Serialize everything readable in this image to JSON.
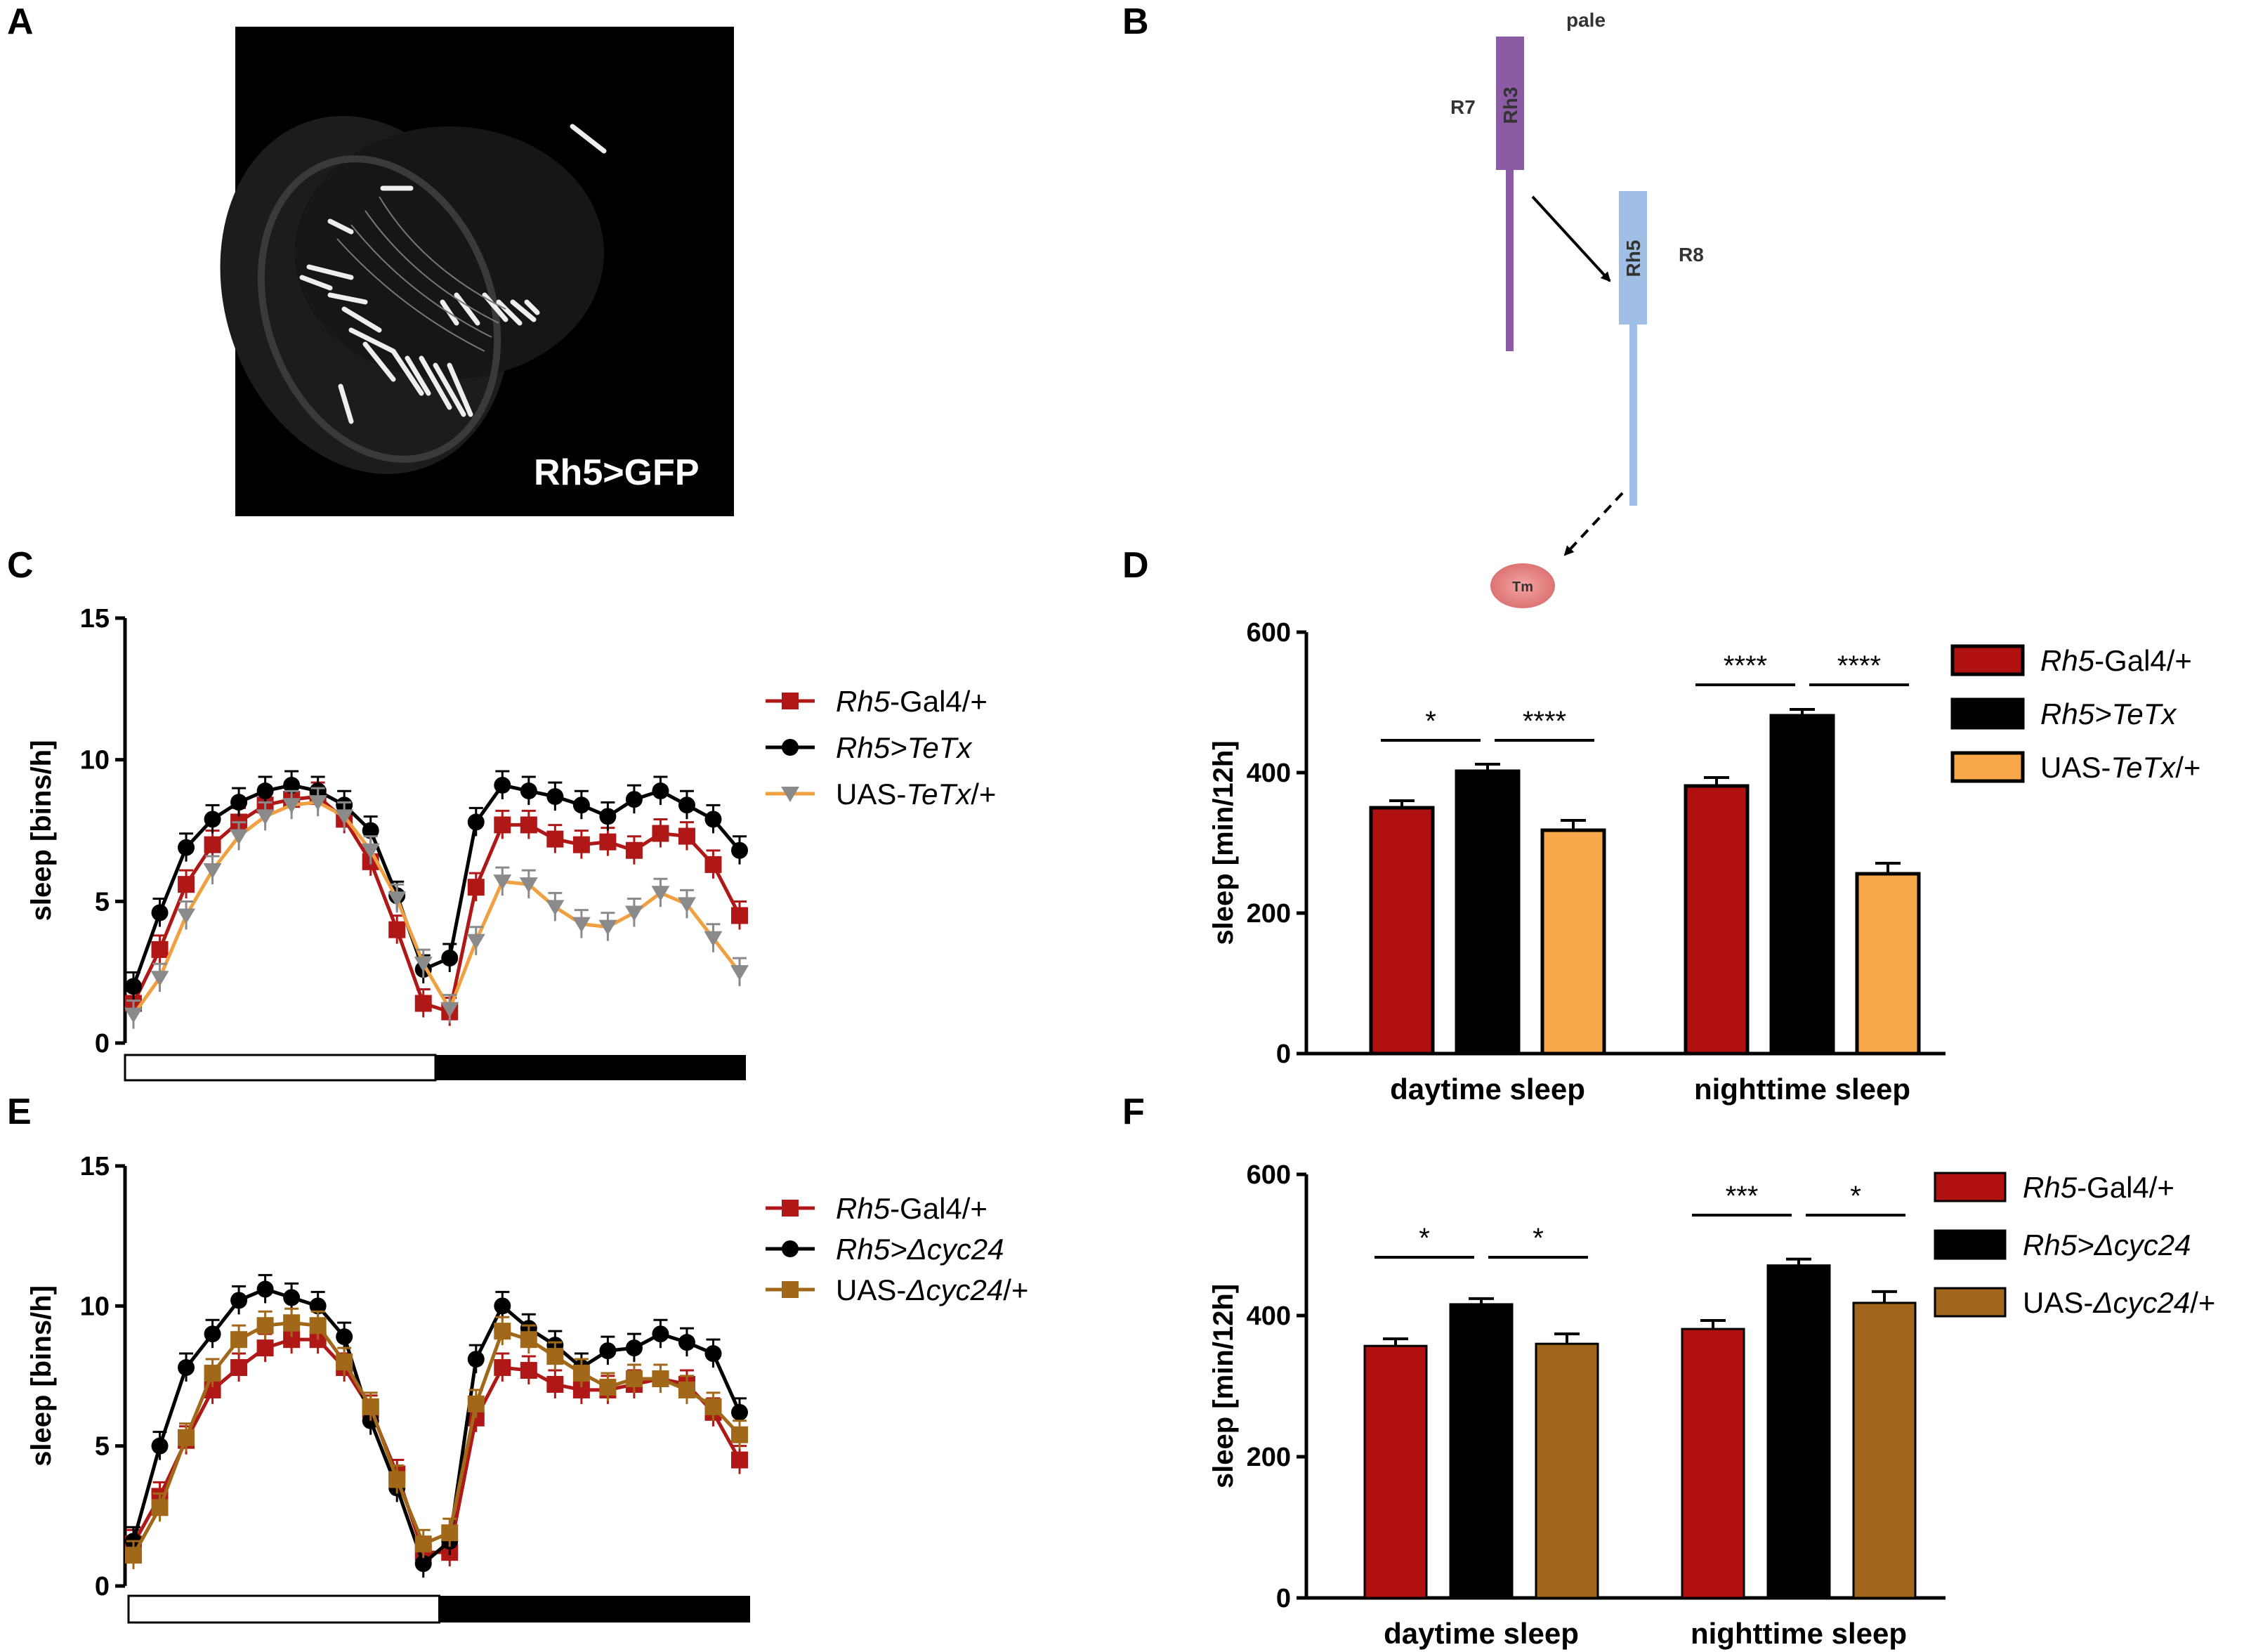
{
  "panels": {
    "A": {
      "label": "A",
      "image_caption": "Rh5>GFP"
    },
    "B": {
      "label": "B",
      "pale": "pale",
      "r7": "R7",
      "rh3": "Rh3",
      "r8": "R8",
      "rh5": "Rh5",
      "tm": "Tm",
      "colors": {
        "r7": "#8b5ca4",
        "r8": "#9fbfe6",
        "tm": "#e88a8a"
      }
    },
    "C": {
      "label": "C"
    },
    "D": {
      "label": "D"
    },
    "E": {
      "label": "E"
    },
    "F": {
      "label": "F"
    }
  },
  "chart_data": [
    {
      "id": "C",
      "type": "line",
      "ylabel": "sleep [bins/h]",
      "ylim": [
        0,
        15
      ],
      "yticks": [
        "0",
        "5",
        "10",
        "15"
      ],
      "x": [
        1,
        2,
        3,
        4,
        5,
        6,
        7,
        8,
        9,
        10,
        11,
        12,
        13,
        14,
        15,
        16,
        17,
        18,
        19,
        20,
        21,
        22,
        23,
        24
      ],
      "light_bar": [
        "light",
        "dark"
      ],
      "series": [
        {
          "name": "Rh5-Gal4/+",
          "italic": "Rh5",
          "rest": "-Gal4/+",
          "color": "#b01818",
          "marker": "square",
          "values": [
            1.4,
            3.3,
            5.6,
            7.0,
            7.8,
            8.4,
            8.6,
            8.7,
            7.9,
            6.4,
            4.0,
            1.4,
            1.1,
            5.5,
            7.7,
            7.7,
            7.2,
            7.0,
            7.1,
            6.8,
            7.4,
            7.3,
            6.3,
            4.5
          ]
        },
        {
          "name": "Rh5>TeTx",
          "italic": "Rh5>TeTx",
          "rest": "",
          "color": "#000000",
          "marker": "circle",
          "values": [
            2.0,
            4.6,
            6.9,
            7.9,
            8.5,
            8.9,
            9.1,
            8.9,
            8.4,
            7.5,
            5.2,
            2.6,
            3.0,
            7.8,
            9.1,
            8.9,
            8.7,
            8.4,
            8.0,
            8.6,
            8.9,
            8.4,
            7.9,
            6.8
          ]
        },
        {
          "name": "UAS-TeTx/+",
          "italic": "TeTx",
          "prefix": "UAS-",
          "rest": "/+",
          "color": "#f0a040",
          "marker": "triangle-down",
          "marker_color": "#8a8a8a",
          "values": [
            1.0,
            2.3,
            4.5,
            6.1,
            7.3,
            8.0,
            8.4,
            8.5,
            8.0,
            6.8,
            5.1,
            2.8,
            1.2,
            3.6,
            5.7,
            5.6,
            4.8,
            4.2,
            4.1,
            4.6,
            5.3,
            4.9,
            3.7,
            2.5
          ]
        }
      ]
    },
    {
      "id": "D",
      "type": "bar",
      "ylabel": "sleep [min/12h]",
      "ylim": [
        0,
        600
      ],
      "yticks": [
        "0",
        "200",
        "400",
        "600"
      ],
      "categories": [
        "daytime sleep",
        "nighttime sleep"
      ],
      "series": [
        {
          "name": "Rh5-Gal4/+",
          "italic": "Rh5",
          "rest": "-Gal4/+",
          "color": "#b01010",
          "values": [
            350,
            381
          ],
          "errors": [
            10,
            12
          ]
        },
        {
          "name": "Rh5>TeTx",
          "italic": "Rh5>TeTx",
          "rest": "",
          "color": "#000000",
          "values": [
            402,
            481
          ],
          "errors": [
            10,
            9
          ]
        },
        {
          "name": "UAS-TeTx/+",
          "italic": "TeTx",
          "prefix": "UAS-",
          "rest": "/+",
          "color": "#f8a848",
          "values": [
            318,
            256
          ],
          "errors": [
            14,
            15
          ]
        }
      ],
      "significance": [
        {
          "category": 0,
          "from": 0,
          "to": 1,
          "text": "*"
        },
        {
          "category": 0,
          "from": 1,
          "to": 2,
          "text": "****"
        },
        {
          "category": 1,
          "from": 0,
          "to": 1,
          "text": "****"
        },
        {
          "category": 1,
          "from": 1,
          "to": 2,
          "text": "****"
        }
      ]
    },
    {
      "id": "E",
      "type": "line",
      "ylabel": "sleep [bins/h]",
      "ylim": [
        0,
        15
      ],
      "yticks": [
        "0",
        "5",
        "10",
        "15"
      ],
      "x": [
        1,
        2,
        3,
        4,
        5,
        6,
        7,
        8,
        9,
        10,
        11,
        12,
        13,
        14,
        15,
        16,
        17,
        18,
        19,
        20,
        21,
        22,
        23,
        24
      ],
      "light_bar": [
        "light",
        "dark"
      ],
      "series": [
        {
          "name": "Rh5-Gal4/+",
          "italic": "Rh5",
          "rest": "-Gal4/+",
          "color": "#b01818",
          "marker": "square",
          "values": [
            1.5,
            3.2,
            5.2,
            7.0,
            7.8,
            8.5,
            8.8,
            8.8,
            7.8,
            6.3,
            4.0,
            1.2,
            1.2,
            6.0,
            7.8,
            7.7,
            7.2,
            7.0,
            7.0,
            7.2,
            7.4,
            7.2,
            6.2,
            4.5
          ]
        },
        {
          "name": "Rh5>Δcyc24",
          "italic": "Rh5>Δcyc24",
          "rest": "",
          "color": "#000000",
          "marker": "circle",
          "values": [
            1.6,
            5.0,
            7.8,
            9.0,
            10.2,
            10.6,
            10.3,
            10.0,
            8.9,
            5.9,
            3.5,
            0.8,
            1.6,
            8.1,
            10.0,
            9.2,
            8.6,
            7.8,
            8.4,
            8.5,
            9.0,
            8.7,
            8.3,
            6.2
          ]
        },
        {
          "name": "UAS-Δcyc24/+",
          "italic": "Δcyc24",
          "prefix": "UAS-",
          "rest": "/+",
          "color": "#a06818",
          "marker": "square",
          "values": [
            1.1,
            2.8,
            5.3,
            7.6,
            8.8,
            9.3,
            9.4,
            9.3,
            8.0,
            6.4,
            3.8,
            1.5,
            1.9,
            6.5,
            9.1,
            8.8,
            8.2,
            7.6,
            7.1,
            7.4,
            7.4,
            7.0,
            6.4,
            5.4
          ]
        }
      ]
    },
    {
      "id": "F",
      "type": "bar",
      "ylabel": "sleep [min/12h]",
      "ylim": [
        0,
        600
      ],
      "yticks": [
        "0",
        "200",
        "400",
        "600"
      ],
      "categories": [
        "daytime sleep",
        "nighttime sleep"
      ],
      "series": [
        {
          "name": "Rh5-Gal4/+",
          "italic": "Rh5",
          "rest": "-Gal4/+",
          "color": "#b01010",
          "values": [
            357,
            381
          ],
          "errors": [
            10,
            12
          ]
        },
        {
          "name": "Rh5>Δcyc24",
          "italic": "Rh5>Δcyc24",
          "rest": "",
          "color": "#000000",
          "values": [
            416,
            471
          ],
          "errors": [
            8,
            9
          ]
        },
        {
          "name": "UAS-Δcyc24/+",
          "italic": "Δcyc24",
          "prefix": "UAS-",
          "rest": "/+",
          "color": "#a0661c",
          "values": [
            360,
            418
          ],
          "errors": [
            14,
            16
          ]
        }
      ],
      "significance": [
        {
          "category": 0,
          "from": 0,
          "to": 1,
          "text": "*"
        },
        {
          "category": 0,
          "from": 1,
          "to": 2,
          "text": "*"
        },
        {
          "category": 1,
          "from": 0,
          "to": 1,
          "text": "***"
        },
        {
          "category": 1,
          "from": 1,
          "to": 2,
          "text": "*"
        }
      ]
    }
  ]
}
